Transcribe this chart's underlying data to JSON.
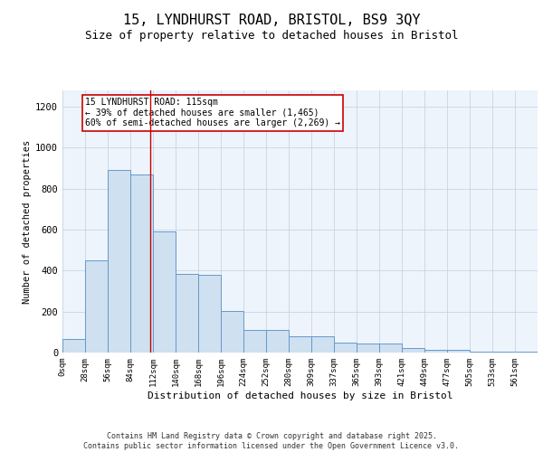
{
  "title1": "15, LYNDHURST ROAD, BRISTOL, BS9 3QY",
  "title2": "Size of property relative to detached houses in Bristol",
  "xlabel": "Distribution of detached houses by size in Bristol",
  "ylabel": "Number of detached properties",
  "bar_labels": [
    "0sqm",
    "28sqm",
    "56sqm",
    "84sqm",
    "112sqm",
    "140sqm",
    "168sqm",
    "196sqm",
    "224sqm",
    "252sqm",
    "280sqm",
    "309sqm",
    "337sqm",
    "365sqm",
    "393sqm",
    "421sqm",
    "449sqm",
    "477sqm",
    "505sqm",
    "533sqm",
    "561sqm"
  ],
  "bar_heights": [
    65,
    450,
    890,
    870,
    590,
    385,
    380,
    205,
    110,
    110,
    80,
    80,
    50,
    45,
    45,
    20,
    15,
    15,
    5,
    5,
    5
  ],
  "bar_color": "#cfe0f0",
  "bar_edge_color": "#6699cc",
  "grid_color": "#c0d0e0",
  "bg_color": "#eef4fb",
  "annotation_text": "15 LYNDHURST ROAD: 115sqm\n← 39% of detached houses are smaller (1,465)\n60% of semi-detached houses are larger (2,269) →",
  "vline_x": 3.87,
  "vline_color": "#cc0000",
  "ylim": [
    0,
    1280
  ],
  "yticks": [
    0,
    200,
    400,
    600,
    800,
    1000,
    1200
  ],
  "footer": "Contains HM Land Registry data © Crown copyright and database right 2025.\nContains public sector information licensed under the Open Government Licence v3.0.",
  "title1_fontsize": 11,
  "title2_fontsize": 9,
  "annotation_box_color": "#ffffff",
  "annotation_box_edge": "#cc0000",
  "footer_fontsize": 6
}
